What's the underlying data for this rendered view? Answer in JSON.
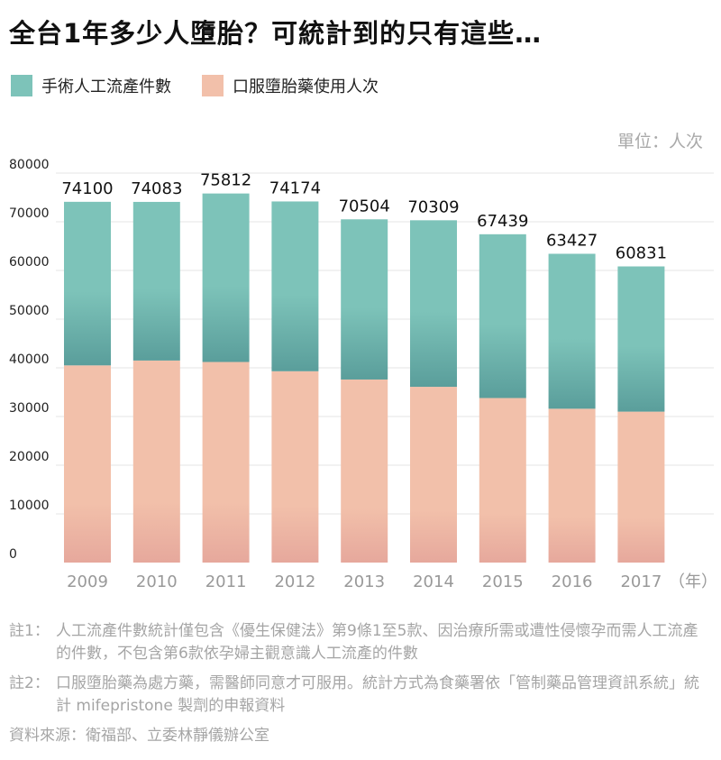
{
  "title": "全台1年多少人墮胎？可統計到的只有這些…",
  "legend": [
    {
      "label": "手術人工流產件數",
      "color": "#7dc3b9"
    },
    {
      "label": "口服墮胎藥使用人次",
      "color": "#f2c0aa"
    }
  ],
  "unit": "單位：人次",
  "year_suffix": "（年）",
  "notes": [
    {
      "label": "註1：",
      "text": "人工流產件數統計僅包含《優生保健法》第9條1至5款、因治療所需或遭性侵懷孕而需人工流產的件數，不包含第6款依孕婦主觀意識人工流產的件數"
    },
    {
      "label": "註2：",
      "text": "口服墮胎藥為處方藥，需醫師同意才可服用。統計方式為食藥署依「管制藥品管理資訊系統」統計 mifepristone 製劑的申報資料"
    }
  ],
  "source": "資料來源：衛福部、立委林靜儀辦公室",
  "chart_data": {
    "type": "bar",
    "stacked": true,
    "categories": [
      "2009",
      "2010",
      "2011",
      "2012",
      "2013",
      "2014",
      "2015",
      "2016",
      "2017"
    ],
    "series": [
      {
        "name": "口服墮胎藥使用人次",
        "color": "#f2c0aa",
        "values": [
          40500,
          41500,
          41200,
          39300,
          37600,
          36100,
          33800,
          31600,
          31000
        ]
      },
      {
        "name": "手術人工流產件數",
        "color": "#7dc3b9",
        "values": [
          33600,
          32583,
          34612,
          34874,
          32904,
          34209,
          33639,
          31827,
          29831
        ]
      }
    ],
    "totals": [
      74100,
      74083,
      75812,
      74174,
      70504,
      70309,
      67439,
      63427,
      60831
    ],
    "yticks": [
      0,
      10000,
      20000,
      30000,
      40000,
      50000,
      60000,
      70000,
      80000
    ],
    "ylim": [
      0,
      80000
    ],
    "grid": true
  }
}
